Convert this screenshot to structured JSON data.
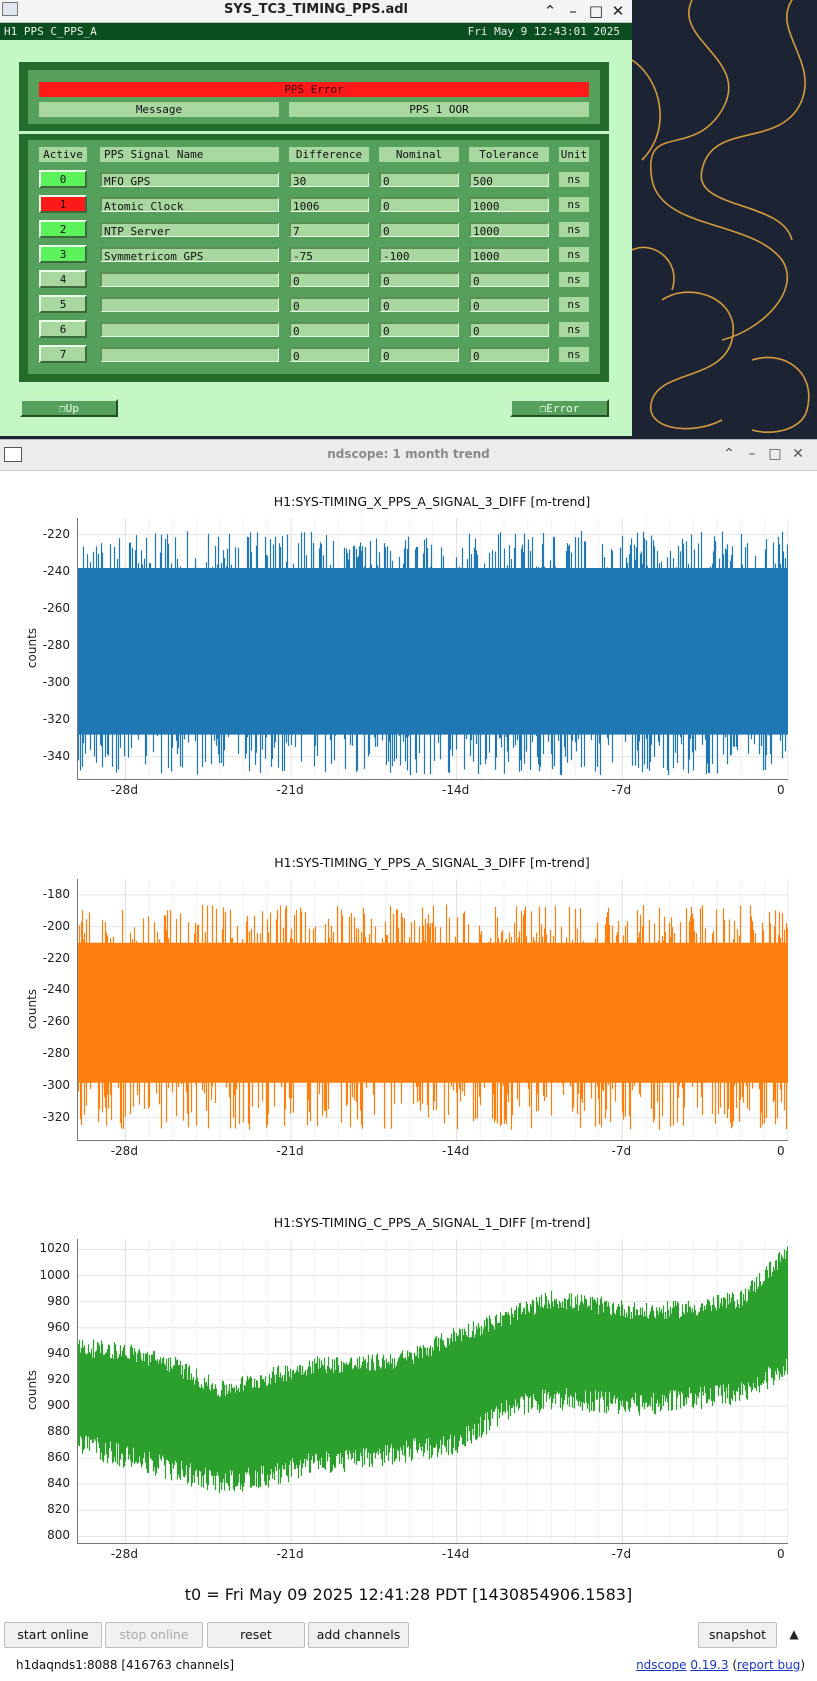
{
  "medm": {
    "title": "SYS_TC3_TIMING_PPS.adl",
    "header_left": "H1 PPS C_PPS_A",
    "header_right": "Fri May  9 12:43:01 2025",
    "error_banner": "PPS Error",
    "message_label": "Message",
    "message_value": "PPS 1 OOR",
    "columns": [
      "Active",
      "PPS Signal Name",
      "Difference",
      "Nominal",
      "Tolerance",
      "Unit"
    ],
    "rows": [
      {
        "index": "0",
        "name": "MFO GPS",
        "difference": "30",
        "nominal": "0",
        "tolerance": "500",
        "unit": "ns",
        "status": "ok"
      },
      {
        "index": "1",
        "name": "Atomic Clock",
        "difference": "1006",
        "nominal": "0",
        "tolerance": "1000",
        "unit": "ns",
        "status": "error"
      },
      {
        "index": "2",
        "name": "NTP Server",
        "difference": "7",
        "nominal": "0",
        "tolerance": "1000",
        "unit": "ns",
        "status": "ok"
      },
      {
        "index": "3",
        "name": "Symmetricom GPS",
        "difference": "-75",
        "nominal": "-100",
        "tolerance": "1000",
        "unit": "ns",
        "status": "ok"
      },
      {
        "index": "4",
        "name": "",
        "difference": "0",
        "nominal": "0",
        "tolerance": "0",
        "unit": "ns",
        "status": "inactive"
      },
      {
        "index": "5",
        "name": "",
        "difference": "0",
        "nominal": "0",
        "tolerance": "0",
        "unit": "ns",
        "status": "inactive"
      },
      {
        "index": "6",
        "name": "",
        "difference": "0",
        "nominal": "0",
        "tolerance": "0",
        "unit": "ns",
        "status": "inactive"
      },
      {
        "index": "7",
        "name": "",
        "difference": "0",
        "nominal": "0",
        "tolerance": "0",
        "unit": "ns",
        "status": "inactive"
      }
    ],
    "status_colors": {
      "ok": "#5cf25c",
      "error": "#ff1a1a",
      "inactive": "#a8d8a0"
    },
    "up_button": "❐Up",
    "error_button": "❐Error"
  },
  "ndscope": {
    "title": "ndscope: 1 month trend",
    "t0": "t0 = Fri May 09 2025 12:41:28 PDT [1430854906.1583]",
    "buttons": {
      "start_online": "start online",
      "stop_online": "stop online",
      "reset": "reset",
      "add_channels": "add channels",
      "snapshot": "snapshot"
    },
    "status_left": "h1daqnds1:8088 [416763 channels]",
    "status_app": "ndscope",
    "status_version": "0.19.3",
    "status_report": "report bug"
  },
  "chart_data": [
    {
      "type": "line",
      "title": "H1:SYS-TIMING_X_PPS_A_SIGNAL_3_DIFF [m-trend]",
      "ylabel": "counts",
      "xlabel": "",
      "color": "#1f77b4",
      "x_ticks": [
        "-28d",
        "-21d",
        "-14d",
        "-7d",
        "0"
      ],
      "y_ticks": [
        -220,
        -240,
        -260,
        -280,
        -300,
        -320,
        -340
      ],
      "ylim": [
        -352,
        -211
      ],
      "xlim_days": [
        -30,
        0
      ],
      "band": {
        "min_typical": -328,
        "max_typical": -238,
        "spike_low": -350,
        "spike_high": -218
      },
      "grid": true
    },
    {
      "type": "line",
      "title": "H1:SYS-TIMING_Y_PPS_A_SIGNAL_3_DIFF [m-trend]",
      "ylabel": "counts",
      "xlabel": "",
      "color": "#ff7f0e",
      "x_ticks": [
        "-28d",
        "-21d",
        "-14d",
        "-7d",
        "0"
      ],
      "y_ticks": [
        -180,
        -200,
        -220,
        -240,
        -260,
        -280,
        -300,
        -320
      ],
      "ylim": [
        -334,
        -170
      ],
      "xlim_days": [
        -30,
        0
      ],
      "band": {
        "min_typical": -298,
        "max_typical": -210,
        "spike_low": -328,
        "spike_high": -186
      },
      "grid": true
    },
    {
      "type": "line",
      "title": "H1:SYS-TIMING_C_PPS_A_SIGNAL_1_DIFF [m-trend]",
      "ylabel": "counts",
      "xlabel": "",
      "color": "#2ca02c",
      "x_ticks": [
        "-28d",
        "-21d",
        "-14d",
        "-7d",
        "0"
      ],
      "y_ticks": [
        1020,
        1000,
        980,
        960,
        940,
        920,
        900,
        880,
        860,
        840,
        820,
        800
      ],
      "ylim": [
        795,
        1028
      ],
      "xlim_days": [
        -30,
        0
      ],
      "trend": {
        "x_days": [
          -30,
          -28,
          -26,
          -24,
          -22,
          -20,
          -18,
          -16,
          -14,
          -12,
          -10,
          -8,
          -6,
          -4,
          -2,
          0
        ],
        "low": [
          880,
          870,
          860,
          850,
          855,
          865,
          868,
          875,
          880,
          905,
          915,
          912,
          910,
          915,
          918,
          940
        ],
        "high": [
          938,
          935,
          925,
          905,
          915,
          925,
          925,
          930,
          948,
          960,
          975,
          970,
          965,
          968,
          975,
          1012
        ]
      },
      "grid": true
    }
  ]
}
